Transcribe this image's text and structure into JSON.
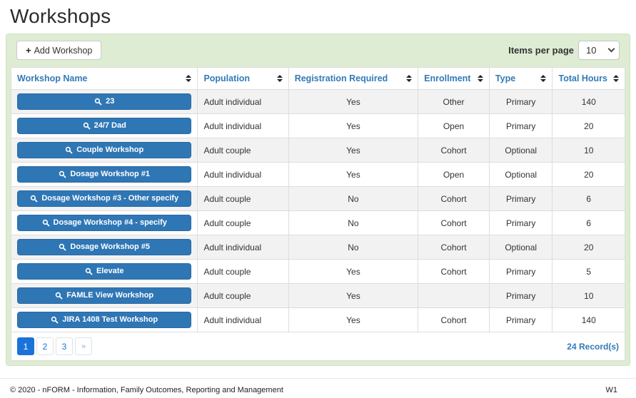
{
  "page": {
    "title": "Workshops",
    "footer": {
      "copyright": "© 2020 - nFORM - Information, Family Outcomes, Reporting and Management",
      "version": "W1"
    }
  },
  "toolbar": {
    "add_button": {
      "icon": "+",
      "label": "Add Workshop"
    },
    "items_per_page": {
      "label": "Items per page",
      "value": "10"
    }
  },
  "table": {
    "columns": [
      {
        "label": "Workshop Name"
      },
      {
        "label": "Population"
      },
      {
        "label": "Registration Required"
      },
      {
        "label": "Enrollment"
      },
      {
        "label": "Type"
      },
      {
        "label": "Total Hours"
      }
    ],
    "rows": [
      {
        "name": "23",
        "population": "Adult individual",
        "registration_required": "Yes",
        "enrollment": "Other",
        "type": "Primary",
        "total_hours": "140"
      },
      {
        "name": "24/7 Dad",
        "population": "Adult individual",
        "registration_required": "Yes",
        "enrollment": "Open",
        "type": "Primary",
        "total_hours": "20"
      },
      {
        "name": "Couple Workshop",
        "population": "Adult couple",
        "registration_required": "Yes",
        "enrollment": "Cohort",
        "type": "Optional",
        "total_hours": "10"
      },
      {
        "name": "Dosage Workshop #1",
        "population": "Adult individual",
        "registration_required": "Yes",
        "enrollment": "Open",
        "type": "Optional",
        "total_hours": "20"
      },
      {
        "name": "Dosage Workshop #3 - Other specify",
        "population": "Adult couple",
        "registration_required": "No",
        "enrollment": "Cohort",
        "type": "Primary",
        "total_hours": "6"
      },
      {
        "name": "Dosage Workshop #4 - specify",
        "population": "Adult couple",
        "registration_required": "No",
        "enrollment": "Cohort",
        "type": "Primary",
        "total_hours": "6"
      },
      {
        "name": "Dosage Workshop #5",
        "population": "Adult individual",
        "registration_required": "No",
        "enrollment": "Cohort",
        "type": "Optional",
        "total_hours": "20"
      },
      {
        "name": "Elevate",
        "population": "Adult couple",
        "registration_required": "Yes",
        "enrollment": "Cohort",
        "type": "Primary",
        "total_hours": "5"
      },
      {
        "name": "FAMLE View Workshop",
        "population": "Adult couple",
        "registration_required": "Yes",
        "enrollment": "",
        "type": "Primary",
        "total_hours": "10"
      },
      {
        "name": "JIRA 1408 Test Workshop",
        "population": "Adult individual",
        "registration_required": "Yes",
        "enrollment": "Cohort",
        "type": "Primary",
        "total_hours": "140"
      }
    ]
  },
  "pagination": {
    "pages": [
      {
        "label": "1",
        "active": true
      },
      {
        "label": "2",
        "active": false
      },
      {
        "label": "3",
        "active": false
      },
      {
        "label": "»",
        "active": false
      }
    ],
    "record_count": "24 Record(s)"
  },
  "colors": {
    "accent_blue": "#2f76b5",
    "header_text_blue": "#337ab7",
    "pagination_active_blue": "#1a73d9",
    "panel_green": "#ddecd2",
    "row_stripe_gray": "#f2f2f2",
    "table_border": "#dddddd"
  }
}
